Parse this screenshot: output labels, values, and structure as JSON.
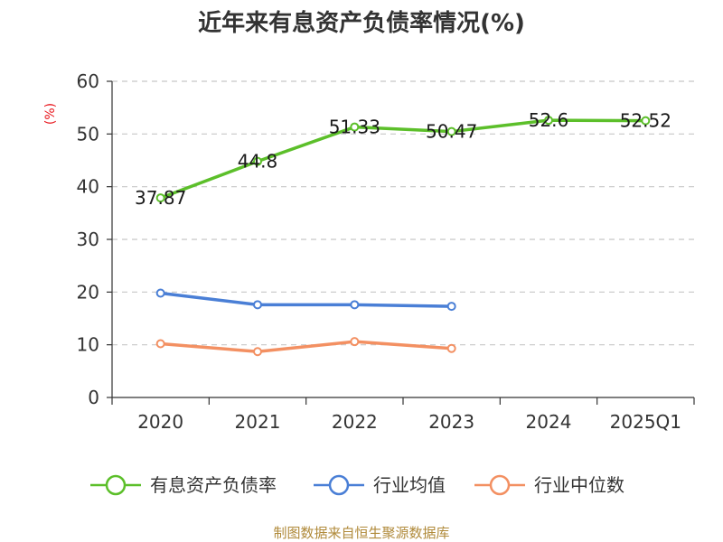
{
  "chart_data": {
    "type": "line",
    "title": "近年来有息资产负债率情况(%)",
    "ylabel": "(%)",
    "xlabel": "",
    "ylim": [
      0,
      60
    ],
    "yticks": [
      0,
      10,
      20,
      30,
      40,
      50,
      60
    ],
    "categories": [
      "2020",
      "2021",
      "2022",
      "2023",
      "2024",
      "2025Q1"
    ],
    "grid": true,
    "legend_position": "bottom",
    "series": [
      {
        "name": "有息资产负债率",
        "color": "#5cbf2a",
        "values": [
          37.87,
          44.8,
          51.33,
          50.47,
          52.6,
          52.52
        ],
        "labels": [
          "37.87",
          "44.8",
          "51.33",
          "50.47",
          "52.6",
          "52.52"
        ]
      },
      {
        "name": "行业均值",
        "color": "#4a7fd6",
        "values": [
          19.8,
          17.6,
          17.6,
          17.3,
          null,
          null
        ]
      },
      {
        "name": "行业中位数",
        "color": "#f39062",
        "values": [
          10.2,
          8.7,
          10.6,
          9.3,
          null,
          null
        ]
      }
    ]
  },
  "source": "制图数据来自恒生聚源数据库"
}
